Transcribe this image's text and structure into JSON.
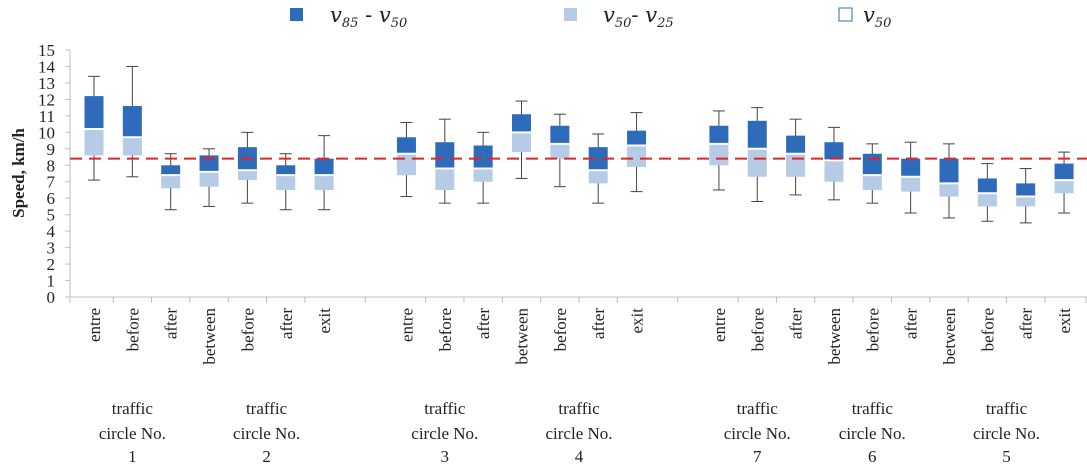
{
  "legend": {
    "upper": {
      "main": "v",
      "sub1": "85",
      "op": " - ",
      "main2": "v",
      "sub2": "50",
      "color": "#2e6bbb"
    },
    "lower": {
      "main": "v",
      "sub1": "50",
      "op": "- ",
      "main2": "v",
      "sub2": "25",
      "color": "#b6cbe6"
    },
    "median": {
      "main": "v",
      "sub1": "50",
      "color": "#ffffff"
    }
  },
  "colors": {
    "upper": "#2e6bbb",
    "lower": "#b6cbe6",
    "whisker": "#444444",
    "reference": "#e0242a",
    "axis": "#bfbfbf"
  },
  "chart_data": {
    "type": "boxplot",
    "ylabel": "Speed, km/h",
    "ylim": [
      0,
      15
    ],
    "yticks": [
      0,
      1,
      2,
      3,
      4,
      5,
      6,
      7,
      8,
      9,
      10,
      11,
      12,
      13,
      14,
      15
    ],
    "reference_line": 8.4,
    "series": [
      {
        "name": "v85 - v50"
      },
      {
        "name": "v50- v25"
      },
      {
        "name": "v50"
      }
    ],
    "categories": [
      {
        "label": "entre",
        "min": 7.1,
        "q25": 8.6,
        "median": 10.2,
        "q85": 12.2,
        "max": 13.4
      },
      {
        "label": "before",
        "min": 7.3,
        "q25": 8.6,
        "median": 9.7,
        "q85": 11.6,
        "max": 14.0
      },
      {
        "label": "after",
        "min": 5.3,
        "q25": 6.6,
        "median": 7.4,
        "q85": 8.0,
        "max": 8.7
      },
      {
        "label": "between",
        "min": 5.5,
        "q25": 6.7,
        "median": 7.6,
        "q85": 8.6,
        "max": 9.0
      },
      {
        "label": "before",
        "min": 5.7,
        "q25": 7.1,
        "median": 7.7,
        "q85": 9.1,
        "max": 10.0
      },
      {
        "label": "after",
        "min": 5.3,
        "q25": 6.5,
        "median": 7.4,
        "q85": 8.0,
        "max": 8.7
      },
      {
        "label": "exit",
        "min": 5.3,
        "q25": 6.5,
        "median": 7.4,
        "q85": 8.4,
        "max": 9.8
      },
      {
        "label": "entre",
        "min": 6.1,
        "q25": 7.4,
        "median": 8.7,
        "q85": 9.7,
        "max": 10.6
      },
      {
        "label": "before",
        "min": 5.7,
        "q25": 6.5,
        "median": 7.8,
        "q85": 9.4,
        "max": 10.8
      },
      {
        "label": "after",
        "min": 5.7,
        "q25": 7.0,
        "median": 7.8,
        "q85": 9.2,
        "max": 10.0
      },
      {
        "label": "between",
        "min": 7.2,
        "q25": 8.8,
        "median": 10.0,
        "q85": 11.1,
        "max": 11.9
      },
      {
        "label": "before",
        "min": 6.7,
        "q25": 8.4,
        "median": 9.3,
        "q85": 10.4,
        "max": 11.1
      },
      {
        "label": "after",
        "min": 5.7,
        "q25": 6.9,
        "median": 7.7,
        "q85": 9.1,
        "max": 9.9
      },
      {
        "label": "exit",
        "min": 6.4,
        "q25": 7.9,
        "median": 9.2,
        "q85": 10.1,
        "max": 11.2
      },
      {
        "label": "entre",
        "min": 6.5,
        "q25": 8.0,
        "median": 9.3,
        "q85": 10.4,
        "max": 11.3
      },
      {
        "label": "before",
        "min": 5.8,
        "q25": 7.3,
        "median": 9.0,
        "q85": 10.7,
        "max": 11.5
      },
      {
        "label": "after",
        "min": 6.2,
        "q25": 7.3,
        "median": 8.7,
        "q85": 9.8,
        "max": 10.8
      },
      {
        "label": "between",
        "min": 5.9,
        "q25": 7.0,
        "median": 8.3,
        "q85": 9.4,
        "max": 10.3
      },
      {
        "label": "before",
        "min": 5.7,
        "q25": 6.5,
        "median": 7.4,
        "q85": 8.7,
        "max": 9.3
      },
      {
        "label": "after",
        "min": 5.1,
        "q25": 6.4,
        "median": 7.3,
        "q85": 8.4,
        "max": 9.4
      },
      {
        "label": "between",
        "min": 4.8,
        "q25": 6.1,
        "median": 6.9,
        "q85": 8.4,
        "max": 9.3
      },
      {
        "label": "before",
        "min": 4.6,
        "q25": 5.5,
        "median": 6.3,
        "q85": 7.2,
        "max": 8.1
      },
      {
        "label": "after",
        "min": 4.5,
        "q25": 5.5,
        "median": 6.1,
        "q85": 6.9,
        "max": 7.8
      },
      {
        "label": "exit",
        "min": 5.1,
        "q25": 6.3,
        "median": 7.1,
        "q85": 8.1,
        "max": 8.8
      }
    ],
    "groups": [
      {
        "line1": "traffic",
        "line2": "circle No.",
        "line3": "1",
        "start": 0,
        "end": 2
      },
      {
        "line1": "traffic",
        "line2": "circle No.",
        "line3": "2",
        "start": 3,
        "end": 6
      },
      {
        "line1": "traffic",
        "line2": "circle No.",
        "line3": "3",
        "start": 7,
        "end": 9
      },
      {
        "line1": "traffic",
        "line2": "circle No.",
        "line3": "4",
        "start": 10,
        "end": 13
      },
      {
        "line1": "traffic",
        "line2": "circle No.",
        "line3": "7",
        "start": 14,
        "end": 16
      },
      {
        "line1": "traffic",
        "line2": "circle No.",
        "line3": "6",
        "start": 17,
        "end": 19
      },
      {
        "line1": "traffic",
        "line2": "circle No.",
        "line3": "5",
        "start": 20,
        "end": 23
      }
    ],
    "grid": false
  }
}
